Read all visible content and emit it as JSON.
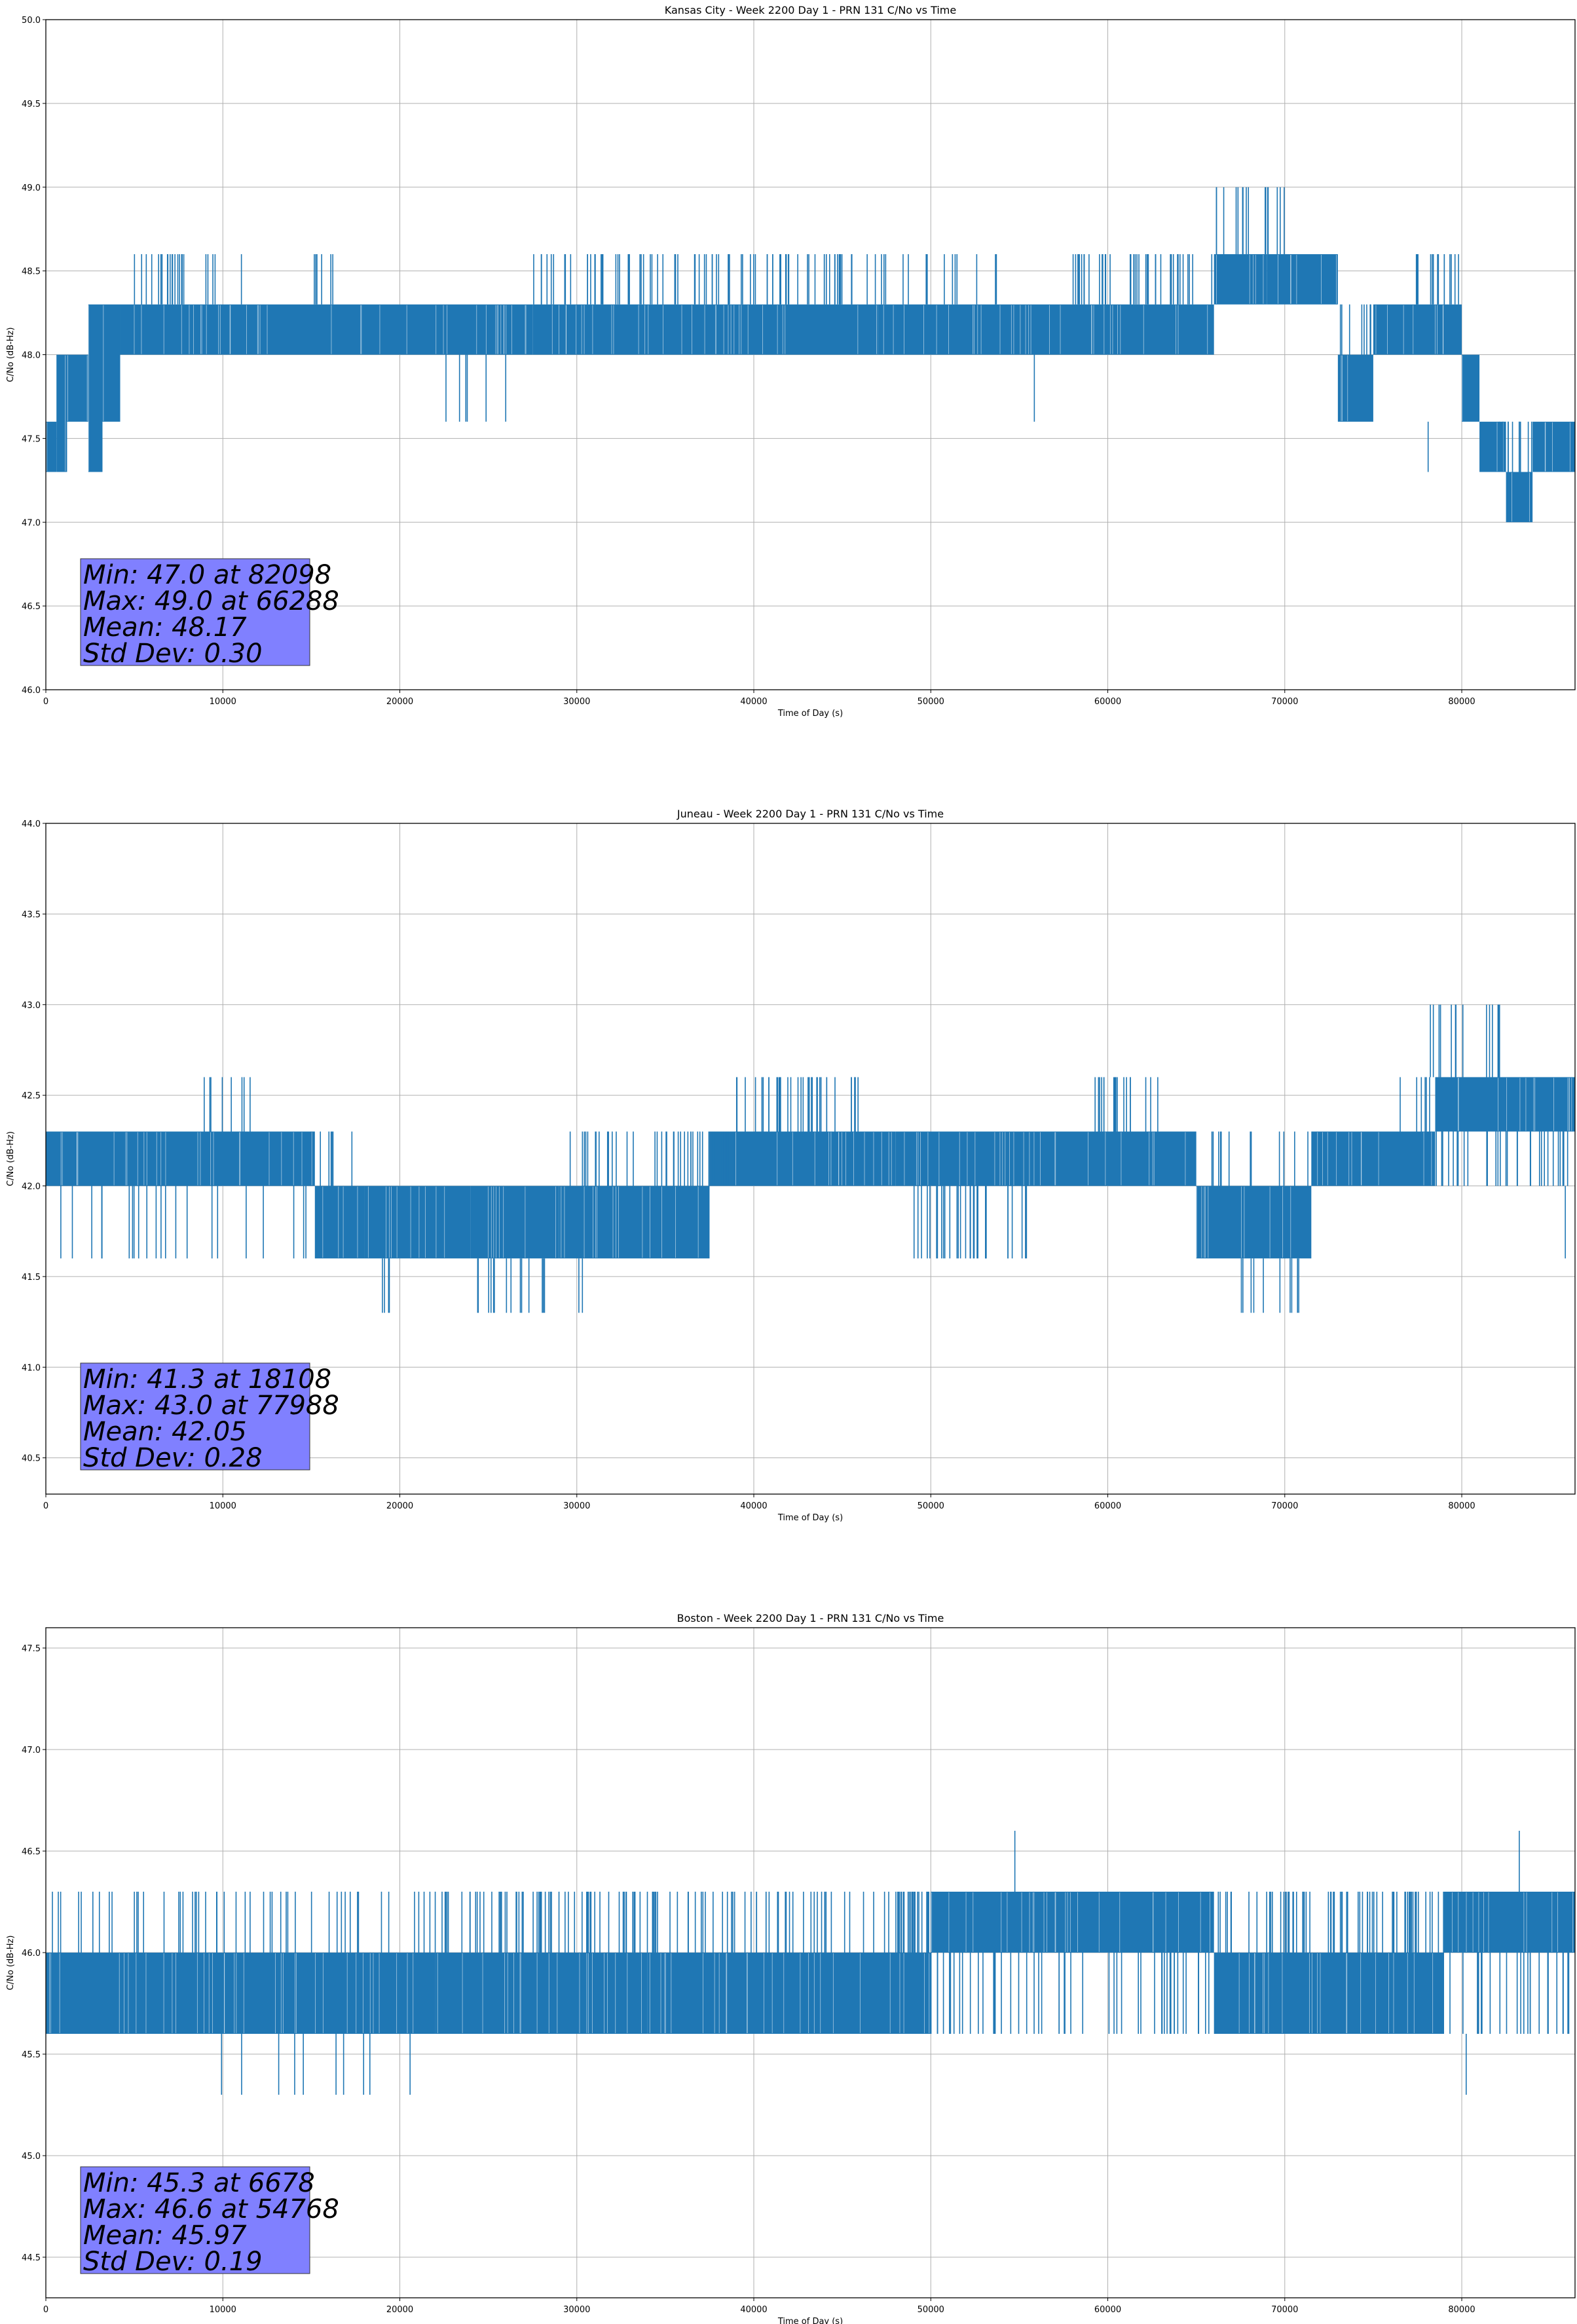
{
  "chart_data": [
    {
      "type": "line",
      "title": "Kansas City - Week 2200 Day 1 - PRN 131 C/No vs Time",
      "xlabel": "Time of Day (s)",
      "ylabel": "C/No (dB-Hz)",
      "xlim": [
        0,
        86400
      ],
      "ylim": [
        46.0,
        50.0
      ],
      "xticks": [
        0,
        10000,
        20000,
        30000,
        40000,
        50000,
        60000,
        70000,
        80000
      ],
      "yticks": [
        46.0,
        46.5,
        47.0,
        47.5,
        48.0,
        48.5,
        49.0,
        49.5,
        50.0
      ],
      "grid": true,
      "series_color": "#1f77b4",
      "stats": [
        "Min: 47.0 at 82098",
        "Max: 49.0 at 66288",
        "Mean: 48.17",
        "Std Dev: 0.30"
      ],
      "segments": [
        {
          "x": [
            0,
            600
          ],
          "lo": 47.3,
          "hi": 47.6
        },
        {
          "x": [
            600,
            1200
          ],
          "lo": 47.3,
          "hi": 48.0
        },
        {
          "x": [
            1200,
            2400
          ],
          "lo": 47.6,
          "hi": 48.0
        },
        {
          "x": [
            2400,
            3200
          ],
          "lo": 47.3,
          "hi": 48.3
        },
        {
          "x": [
            3200,
            4200
          ],
          "lo": 47.6,
          "hi": 48.3
        },
        {
          "x": [
            4200,
            27500
          ],
          "lo": 48.0,
          "hi": 48.3
        },
        {
          "x": [
            27500,
            47000
          ],
          "lo": 48.0,
          "hi": 48.3
        },
        {
          "x": [
            47000,
            66000
          ],
          "lo": 48.0,
          "hi": 48.3
        },
        {
          "x": [
            66000,
            69000
          ],
          "lo": 48.3,
          "hi": 48.6
        },
        {
          "x": [
            69000,
            73000
          ],
          "lo": 48.3,
          "hi": 48.6
        },
        {
          "x": [
            73000,
            75000
          ],
          "lo": 47.6,
          "hi": 48.0
        },
        {
          "x": [
            75000,
            80000
          ],
          "lo": 48.0,
          "hi": 48.3
        },
        {
          "x": [
            80000,
            81000
          ],
          "lo": 47.6,
          "hi": 48.0
        },
        {
          "x": [
            81000,
            82500
          ],
          "lo": 47.3,
          "hi": 47.6
        },
        {
          "x": [
            82500,
            84000
          ],
          "lo": 47.0,
          "hi": 47.3
        },
        {
          "x": [
            84000,
            86400
          ],
          "lo": 47.3,
          "hi": 47.6
        }
      ],
      "spikes": [
        {
          "x": [
            5000,
            8000
          ],
          "lo": 48.3,
          "hi": 48.6,
          "count": 18
        },
        {
          "x": [
            9000,
            9600
          ],
          "lo": 48.3,
          "hi": 48.6,
          "count": 4
        },
        {
          "x": [
            11000,
            11100
          ],
          "lo": 48.3,
          "hi": 48.6,
          "count": 1
        },
        {
          "x": [
            15000,
            17000
          ],
          "lo": 48.3,
          "hi": 48.6,
          "count": 6
        },
        {
          "x": [
            22000,
            27500
          ],
          "lo": 47.6,
          "hi": 48.0,
          "count": 6
        },
        {
          "x": [
            27500,
            47000
          ],
          "lo": 48.3,
          "hi": 48.6,
          "count": 80
        },
        {
          "x": [
            47000,
            54000
          ],
          "lo": 48.3,
          "hi": 48.6,
          "count": 14
        },
        {
          "x": [
            55800,
            55900
          ],
          "lo": 47.6,
          "hi": 48.0,
          "count": 1
        },
        {
          "x": [
            58000,
            66000
          ],
          "lo": 48.3,
          "hi": 48.6,
          "count": 40
        },
        {
          "x": [
            66000,
            70000
          ],
          "lo": 48.6,
          "hi": 49.0,
          "count": 16
        },
        {
          "x": [
            73000,
            75000
          ],
          "lo": 48.0,
          "hi": 48.3,
          "count": 8
        },
        {
          "x": [
            77000,
            80000
          ],
          "lo": 48.3,
          "hi": 48.6,
          "count": 14
        },
        {
          "x": [
            78000,
            78200
          ],
          "lo": 47.3,
          "hi": 47.6,
          "count": 1
        },
        {
          "x": [
            82000,
            84000
          ],
          "lo": 47.3,
          "hi": 47.6,
          "count": 10
        }
      ]
    },
    {
      "type": "line",
      "title": "Juneau - Week 2200 Day 1 - PRN 131 C/No vs Time",
      "xlabel": "Time of Day (s)",
      "ylabel": "C/No (dB-Hz)",
      "xlim": [
        0,
        86400
      ],
      "ylim": [
        40.3,
        44.0
      ],
      "xticks": [
        0,
        10000,
        20000,
        30000,
        40000,
        50000,
        60000,
        70000,
        80000
      ],
      "yticks": [
        40.5,
        41.0,
        41.5,
        42.0,
        42.5,
        43.0,
        43.5,
        44.0
      ],
      "grid": true,
      "series_color": "#1f77b4",
      "stats": [
        "Min: 41.3 at 18108",
        "Max: 43.0 at 77988",
        "Mean: 42.05",
        "Std Dev: 0.28"
      ],
      "segments": [
        {
          "x": [
            0,
            15200
          ],
          "lo": 42.0,
          "hi": 42.3
        },
        {
          "x": [
            15200,
            18000
          ],
          "lo": 41.6,
          "hi": 42.0
        },
        {
          "x": [
            18000,
            24000
          ],
          "lo": 41.6,
          "hi": 42.0
        },
        {
          "x": [
            24000,
            29000
          ],
          "lo": 41.6,
          "hi": 42.0
        },
        {
          "x": [
            29000,
            37500
          ],
          "lo": 41.6,
          "hi": 42.0
        },
        {
          "x": [
            37500,
            39000
          ],
          "lo": 42.0,
          "hi": 42.3
        },
        {
          "x": [
            39000,
            48000
          ],
          "lo": 42.0,
          "hi": 42.3
        },
        {
          "x": [
            48000,
            65000
          ],
          "lo": 42.0,
          "hi": 42.3
        },
        {
          "x": [
            65000,
            71500
          ],
          "lo": 41.6,
          "hi": 42.0
        },
        {
          "x": [
            71500,
            78500
          ],
          "lo": 42.0,
          "hi": 42.3
        },
        {
          "x": [
            78500,
            86400
          ],
          "lo": 42.3,
          "hi": 42.6
        }
      ],
      "spikes": [
        {
          "x": [
            0,
            15200
          ],
          "lo": 41.6,
          "hi": 42.0,
          "count": 22
        },
        {
          "x": [
            8200,
            11700
          ],
          "lo": 42.3,
          "hi": 42.6,
          "count": 8
        },
        {
          "x": [
            15500,
            18000
          ],
          "lo": 42.0,
          "hi": 42.3,
          "count": 6
        },
        {
          "x": [
            18000,
            19500
          ],
          "lo": 41.3,
          "hi": 41.6,
          "count": 4
        },
        {
          "x": [
            24000,
            28500
          ],
          "lo": 41.3,
          "hi": 41.6,
          "count": 14
        },
        {
          "x": [
            29500,
            31000
          ],
          "lo": 41.3,
          "hi": 41.6,
          "count": 2
        },
        {
          "x": [
            29500,
            39000
          ],
          "lo": 42.0,
          "hi": 42.3,
          "count": 50
        },
        {
          "x": [
            39000,
            46000
          ],
          "lo": 42.3,
          "hi": 42.6,
          "count": 36
        },
        {
          "x": [
            49000,
            56000
          ],
          "lo": 41.6,
          "hi": 42.0,
          "count": 30
        },
        {
          "x": [
            59000,
            63000
          ],
          "lo": 42.3,
          "hi": 42.6,
          "count": 18
        },
        {
          "x": [
            65000,
            71500
          ],
          "lo": 42.0,
          "hi": 42.3,
          "count": 12
        },
        {
          "x": [
            67500,
            71500
          ],
          "lo": 41.3,
          "hi": 41.6,
          "count": 10
        },
        {
          "x": [
            76000,
            78500
          ],
          "lo": 42.3,
          "hi": 42.6,
          "count": 6
        },
        {
          "x": [
            78000,
            83000
          ],
          "lo": 42.6,
          "hi": 43.0,
          "count": 14
        },
        {
          "x": [
            78500,
            86400
          ],
          "lo": 42.0,
          "hi": 42.3,
          "count": 30
        },
        {
          "x": [
            85800,
            85900
          ],
          "lo": 41.6,
          "hi": 42.0,
          "count": 1
        }
      ]
    },
    {
      "type": "line",
      "title": "Boston - Week 2200 Day 1 - PRN 131 C/No vs Time",
      "xlabel": "Time of Day (s)",
      "ylabel": "C/No (dB-Hz)",
      "xlim": [
        0,
        86400
      ],
      "ylim": [
        44.3,
        47.6
      ],
      "xticks": [
        0,
        10000,
        20000,
        30000,
        40000,
        50000,
        60000,
        70000,
        80000
      ],
      "yticks": [
        44.5,
        45.0,
        45.5,
        46.0,
        46.5,
        47.0,
        47.5
      ],
      "grid": true,
      "series_color": "#1f77b4",
      "stats": [
        "Min: 45.3 at 6678",
        "Max: 46.6 at 54768",
        "Mean: 45.97",
        "Std Dev: 0.19"
      ],
      "segments": [
        {
          "x": [
            0,
            22000
          ],
          "lo": 45.6,
          "hi": 46.0
        },
        {
          "x": [
            22000,
            34000
          ],
          "lo": 45.6,
          "hi": 46.0
        },
        {
          "x": [
            34000,
            50000
          ],
          "lo": 45.6,
          "hi": 46.0
        },
        {
          "x": [
            50000,
            66000
          ],
          "lo": 46.0,
          "hi": 46.3
        },
        {
          "x": [
            66000,
            79000
          ],
          "lo": 45.6,
          "hi": 46.0
        },
        {
          "x": [
            79000,
            86400
          ],
          "lo": 46.0,
          "hi": 46.3
        }
      ],
      "spikes": [
        {
          "x": [
            0,
            22000
          ],
          "lo": 46.0,
          "hi": 46.3,
          "count": 50
        },
        {
          "x": [
            6500,
            24000
          ],
          "lo": 45.3,
          "hi": 45.6,
          "count": 10
        },
        {
          "x": [
            22000,
            34000
          ],
          "lo": 46.0,
          "hi": 46.3,
          "count": 60
        },
        {
          "x": [
            34000,
            50000
          ],
          "lo": 46.0,
          "hi": 46.3,
          "count": 70
        },
        {
          "x": [
            50000,
            66000
          ],
          "lo": 45.6,
          "hi": 46.0,
          "count": 50
        },
        {
          "x": [
            54700,
            54800
          ],
          "lo": 46.3,
          "hi": 46.6,
          "count": 1
        },
        {
          "x": [
            66000,
            79000
          ],
          "lo": 46.0,
          "hi": 46.3,
          "count": 70
        },
        {
          "x": [
            79000,
            86400
          ],
          "lo": 45.6,
          "hi": 46.0,
          "count": 24
        },
        {
          "x": [
            80200,
            80300
          ],
          "lo": 45.3,
          "hi": 45.6,
          "count": 1
        },
        {
          "x": [
            83200,
            83300
          ],
          "lo": 46.3,
          "hi": 46.6,
          "count": 1
        }
      ]
    }
  ]
}
